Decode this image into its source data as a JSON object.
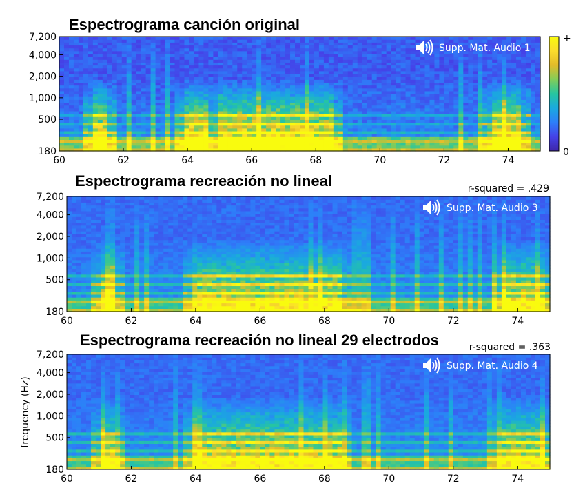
{
  "colorbar": {
    "max_label": "+",
    "min_label": "0",
    "colors": [
      "#3e26a8",
      "#4542e8",
      "#2d7ff9",
      "#1aa9df",
      "#27c5a0",
      "#82cc59",
      "#e3bb2a",
      "#fbdd2c",
      "#f9fb0e"
    ]
  },
  "chart_data": [
    {
      "type": "heatmap",
      "id": "original",
      "title": "Espectrograma canción original",
      "audio_label": "Supp. Mat. Audio 1",
      "r_squared_label": "",
      "xlabel": "",
      "ylabel": "",
      "xlim": [
        60,
        75
      ],
      "x_ticks": [
        60,
        62,
        64,
        66,
        68,
        70,
        72,
        74
      ],
      "y_scale": "log",
      "ylim": [
        180,
        7200
      ],
      "y_ticks": [
        180,
        500,
        1000,
        2000,
        4000,
        7200
      ],
      "y_tick_labels": [
        "180",
        "500",
        "1,000",
        "2,000",
        "4,000",
        "7,200"
      ],
      "value_range": [
        0,
        1
      ],
      "strong_activity_seconds": [
        [
          61.0,
          61.5
        ],
        [
          63.9,
          64.6
        ],
        [
          65.0,
          68.6
        ],
        [
          73.5,
          74.4
        ]
      ],
      "note": "Spectrogram of original song; strong energy below ~1,000 Hz, harmonic bands 180-600 Hz"
    },
    {
      "type": "heatmap",
      "id": "nonlinear",
      "title": "Espectrograma recreación no lineal",
      "audio_label": "Supp. Mat. Audio 3",
      "r_squared_label": "r-squared = .429",
      "r_squared": 0.429,
      "xlabel": "",
      "ylabel": "",
      "xlim": [
        60,
        75
      ],
      "x_ticks": [
        60,
        62,
        64,
        66,
        68,
        70,
        72,
        74
      ],
      "y_scale": "log",
      "ylim": [
        180,
        7200
      ],
      "y_ticks": [
        180,
        500,
        1000,
        2000,
        4000,
        7200
      ],
      "y_tick_labels": [
        "180",
        "500",
        "1,000",
        "2,000",
        "4,000",
        "7,200"
      ],
      "value_range": [
        0,
        1
      ],
      "strong_activity_seconds": [
        [
          61.0,
          61.5
        ],
        [
          63.9,
          68.6
        ],
        [
          73.5,
          74.8
        ]
      ],
      "note": "Nonlinear model reconstruction"
    },
    {
      "type": "heatmap",
      "id": "nonlinear29",
      "title": "Espectrograma recreación no lineal 29 electrodos",
      "audio_label": "Supp. Mat. Audio 4",
      "r_squared_label": "r-squared = .363",
      "r_squared": 0.363,
      "xlabel": "",
      "ylabel": "frequency (Hz)",
      "xlim": [
        60,
        75
      ],
      "x_ticks": [
        60,
        62,
        64,
        66,
        68,
        70,
        72,
        74
      ],
      "y_scale": "log",
      "ylim": [
        180,
        7200
      ],
      "y_ticks": [
        180,
        500,
        1000,
        2000,
        4000,
        7200
      ],
      "y_tick_labels": [
        "180",
        "500",
        "1,000",
        "2,000",
        "4,000",
        "7,200"
      ],
      "value_range": [
        0,
        1
      ],
      "strong_activity_seconds": [
        [
          61.0,
          61.5
        ],
        [
          63.9,
          68.6
        ],
        [
          73.5,
          74.8
        ]
      ],
      "note": "Nonlinear reconstruction with 29 electrodes"
    }
  ]
}
